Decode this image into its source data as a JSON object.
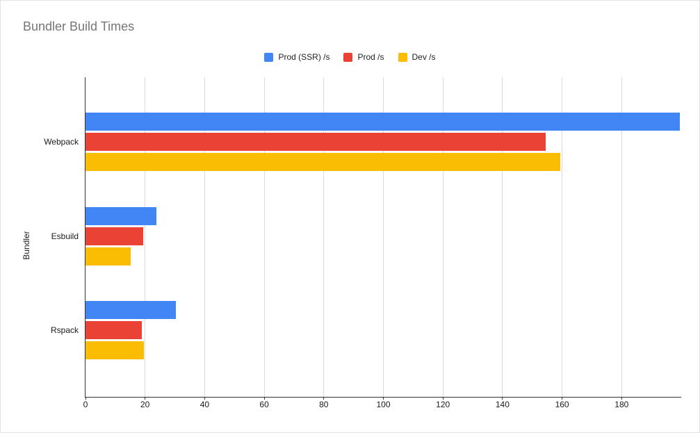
{
  "chart_data": {
    "type": "bar",
    "orientation": "horizontal",
    "title": "Bundler Build Times",
    "xlabel": "",
    "ylabel": "Bundler",
    "categories": [
      "Webpack",
      "Esbuild",
      "Rspack"
    ],
    "series": [
      {
        "name": "Prod (SSR) /s",
        "color": "#4285F4",
        "values": [
          199.5,
          23.7,
          30.3
        ]
      },
      {
        "name": "Prod /s",
        "color": "#EA4335",
        "values": [
          154.4,
          19.4,
          18.9
        ]
      },
      {
        "name": "Dev /s",
        "color": "#FBBC04",
        "values": [
          159.3,
          15.2,
          19.6
        ]
      }
    ],
    "xlim": [
      0,
      200
    ],
    "xticks": [
      0,
      20,
      40,
      60,
      80,
      100,
      120,
      140,
      160,
      180
    ],
    "grid": true,
    "legend_position": "top",
    "axis_line_color": "#333333",
    "gridline_color": "#d9d9d9",
    "title_color": "#757575"
  }
}
